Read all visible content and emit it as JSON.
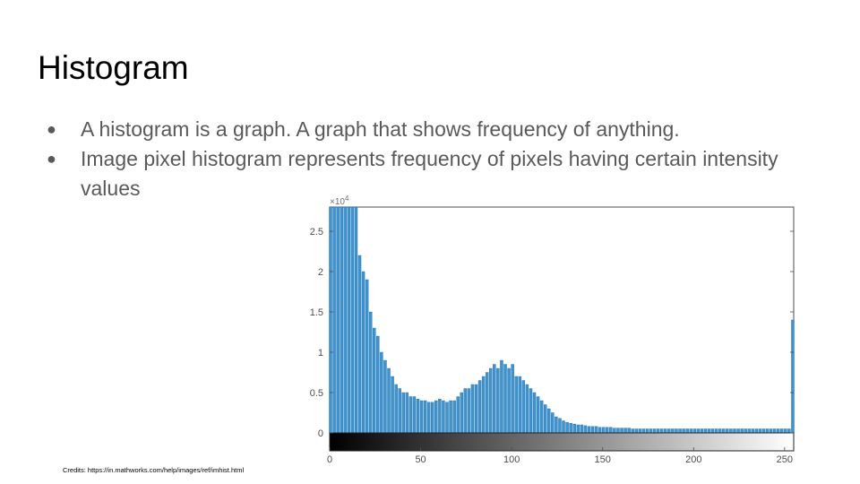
{
  "slide": {
    "title": "Histogram",
    "bullets": [
      "A histogram is a graph. A graph that shows frequency of anything.",
      "Image pixel histogram represents frequency of pixels having certain intensity values"
    ],
    "bullet_glyph": "●",
    "credits": "Credits: https://in.mathworks.com/help/images/ref/imhist.html"
  },
  "chart_data": {
    "type": "bar",
    "title": "",
    "xlabel": "",
    "ylabel": "",
    "xlim": [
      0,
      255
    ],
    "ylim": [
      0,
      2.8
    ],
    "y_multiplier_label": "×10",
    "y_multiplier_exponent": "4",
    "xticks": [
      0,
      50,
      100,
      150,
      200,
      250
    ],
    "xtick_labels": [
      "0",
      "50",
      "100",
      "150",
      "200",
      "250"
    ],
    "yticks": [
      0,
      0.5,
      1,
      1.5,
      2,
      2.5
    ],
    "ytick_labels": [
      "0",
      "0.5",
      "1",
      "1.5",
      "2",
      "2.5"
    ],
    "grid": false,
    "has_colorbar": true,
    "colorbar": "grayscale 0 (black) to 255 (white)",
    "bar_color": "#3f93cf",
    "bar_edge_color": "#1f6fa8",
    "x": [
      0,
      2,
      4,
      6,
      8,
      10,
      12,
      14,
      16,
      18,
      20,
      22,
      24,
      26,
      28,
      30,
      32,
      34,
      36,
      38,
      40,
      42,
      44,
      46,
      48,
      50,
      52,
      54,
      56,
      58,
      60,
      62,
      64,
      66,
      68,
      70,
      72,
      74,
      76,
      78,
      80,
      82,
      84,
      86,
      88,
      90,
      92,
      94,
      96,
      98,
      100,
      102,
      104,
      106,
      108,
      110,
      112,
      114,
      116,
      118,
      120,
      122,
      124,
      126,
      128,
      130,
      132,
      134,
      136,
      138,
      140,
      142,
      144,
      146,
      148,
      150,
      152,
      154,
      156,
      158,
      160,
      162,
      164,
      166,
      168,
      170,
      172,
      174,
      176,
      178,
      180,
      182,
      184,
      186,
      188,
      190,
      192,
      194,
      196,
      198,
      200,
      202,
      204,
      206,
      208,
      210,
      212,
      214,
      216,
      218,
      220,
      222,
      224,
      226,
      228,
      230,
      232,
      234,
      236,
      238,
      240,
      242,
      244,
      246,
      248,
      250,
      252,
      254
    ],
    "values": [
      2.8,
      2.8,
      2.8,
      2.8,
      2.8,
      2.8,
      2.8,
      2.8,
      2.2,
      2.0,
      1.9,
      1.5,
      1.3,
      1.2,
      1.0,
      0.9,
      0.8,
      0.7,
      0.6,
      0.55,
      0.5,
      0.5,
      0.45,
      0.45,
      0.42,
      0.4,
      0.4,
      0.38,
      0.38,
      0.4,
      0.42,
      0.4,
      0.38,
      0.4,
      0.4,
      0.45,
      0.5,
      0.55,
      0.55,
      0.6,
      0.6,
      0.65,
      0.7,
      0.75,
      0.8,
      0.85,
      0.8,
      0.9,
      0.85,
      0.8,
      0.85,
      0.7,
      0.7,
      0.65,
      0.6,
      0.55,
      0.5,
      0.45,
      0.4,
      0.35,
      0.3,
      0.25,
      0.2,
      0.18,
      0.15,
      0.13,
      0.12,
      0.11,
      0.1,
      0.1,
      0.09,
      0.08,
      0.08,
      0.08,
      0.07,
      0.07,
      0.07,
      0.07,
      0.06,
      0.06,
      0.06,
      0.06,
      0.06,
      0.05,
      0.05,
      0.05,
      0.05,
      0.05,
      0.05,
      0.05,
      0.05,
      0.05,
      0.05,
      0.05,
      0.05,
      0.05,
      0.05,
      0.05,
      0.05,
      0.05,
      0.05,
      0.05,
      0.05,
      0.05,
      0.05,
      0.05,
      0.05,
      0.05,
      0.05,
      0.05,
      0.05,
      0.05,
      0.05,
      0.05,
      0.05,
      0.05,
      0.05,
      0.05,
      0.05,
      0.05,
      0.05,
      0.05,
      0.05,
      0.05,
      0.05,
      0.05,
      0.05,
      1.4
    ]
  }
}
